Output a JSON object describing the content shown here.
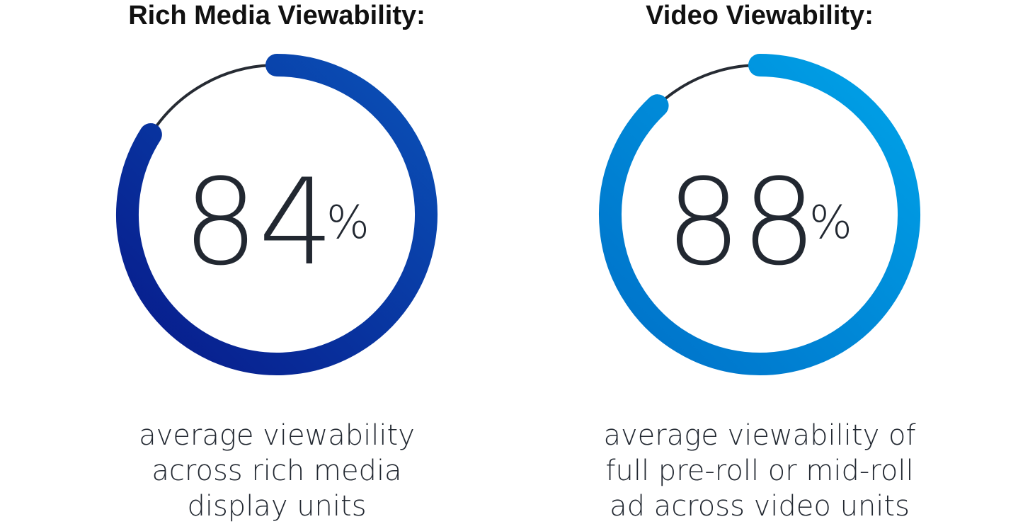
{
  "chart_data": [
    {
      "type": "gauge",
      "title": "Rich Media Viewability:",
      "values": [
        84
      ],
      "unit": "%",
      "ylim": [
        0,
        100
      ],
      "colors": [
        "#071a8a",
        "#0a52b8"
      ],
      "description": [
        "average viewability",
        "across rich media",
        "display units"
      ]
    },
    {
      "type": "gauge",
      "title": "Video Viewability:",
      "values": [
        88
      ],
      "unit": "%",
      "ylim": [
        0,
        100
      ],
      "colors": [
        "#0070c8",
        "#00a3e8"
      ],
      "description": [
        "average viewability of",
        "full pre-roll or mid-roll",
        "ad across video units"
      ]
    }
  ]
}
